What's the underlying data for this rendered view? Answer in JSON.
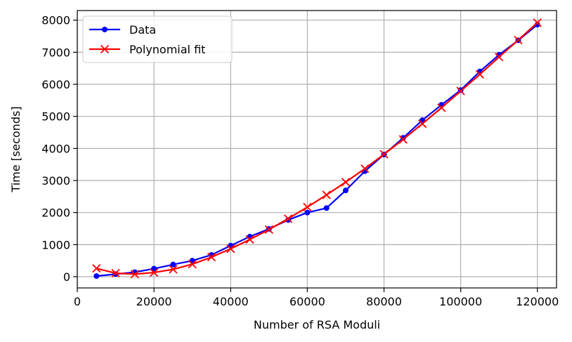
{
  "chart_data": {
    "type": "line",
    "xlabel": "Number of RSA Moduli",
    "ylabel": "Time [seconds]",
    "xlim": [
      0,
      125000
    ],
    "ylim": [
      -350,
      8300
    ],
    "xticks": [
      0,
      20000,
      40000,
      60000,
      80000,
      100000,
      120000
    ],
    "yticks": [
      0,
      1000,
      2000,
      3000,
      4000,
      5000,
      6000,
      7000,
      8000
    ],
    "grid": true,
    "legend_position": "top-left",
    "series": [
      {
        "name": "Data",
        "color": "#0000ff",
        "marker": "dot",
        "x": [
          5000,
          10000,
          15000,
          20000,
          25000,
          30000,
          35000,
          40000,
          45000,
          50000,
          55000,
          60000,
          65000,
          70000,
          75000,
          80000,
          85000,
          90000,
          95000,
          100000,
          105000,
          110000,
          115000,
          120000
        ],
        "y": [
          20,
          80,
          140,
          250,
          380,
          500,
          680,
          970,
          1250,
          1490,
          1770,
          2000,
          2140,
          2690,
          3290,
          3810,
          4330,
          4880,
          5360,
          5820,
          6400,
          6920,
          7370,
          7860
        ]
      },
      {
        "name": "Polynomial fit",
        "color": "#ff0000",
        "marker": "x",
        "x": [
          5000,
          10000,
          15000,
          20000,
          25000,
          30000,
          35000,
          40000,
          45000,
          50000,
          55000,
          60000,
          65000,
          70000,
          75000,
          80000,
          85000,
          90000,
          95000,
          100000,
          105000,
          110000,
          115000,
          120000
        ],
        "y": [
          260,
          110,
          80,
          130,
          230,
          390,
          610,
          870,
          1160,
          1470,
          1810,
          2170,
          2550,
          2950,
          3370,
          3820,
          4280,
          4770,
          5270,
          5790,
          6310,
          6850,
          7380,
          7920
        ]
      }
    ]
  }
}
